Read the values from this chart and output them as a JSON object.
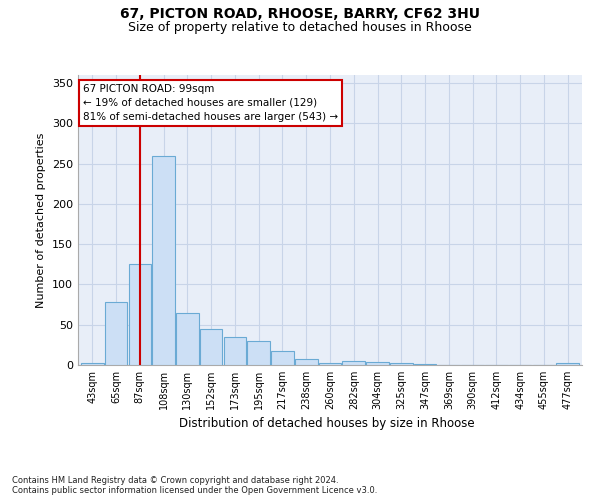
{
  "title1": "67, PICTON ROAD, RHOOSE, BARRY, CF62 3HU",
  "title2": "Size of property relative to detached houses in Rhoose",
  "xlabel": "Distribution of detached houses by size in Rhoose",
  "ylabel": "Number of detached properties",
  "footnote": "Contains HM Land Registry data © Crown copyright and database right 2024.\nContains public sector information licensed under the Open Government Licence v3.0.",
  "bin_labels": [
    "43sqm",
    "65sqm",
    "87sqm",
    "108sqm",
    "130sqm",
    "152sqm",
    "173sqm",
    "195sqm",
    "217sqm",
    "238sqm",
    "260sqm",
    "282sqm",
    "304sqm",
    "325sqm",
    "347sqm",
    "369sqm",
    "390sqm",
    "412sqm",
    "434sqm",
    "455sqm",
    "477sqm"
  ],
  "bar_values": [
    3,
    78,
    125,
    260,
    65,
    45,
    35,
    30,
    18,
    8,
    3,
    5,
    4,
    3,
    1,
    0,
    0,
    0,
    0,
    0,
    2
  ],
  "bar_color": "#ccdff5",
  "bar_edge_color": "#6aaad4",
  "grid_color": "#c8d4e8",
  "background_color": "#e8eef8",
  "red_line_color": "#cc0000",
  "annotation_box_color": "#ffffff",
  "annotation_border_color": "#cc0000",
  "property_label": "67 PICTON ROAD: 99sqm",
  "annotation_line1": "← 19% of detached houses are smaller (129)",
  "annotation_line2": "81% of semi-detached houses are larger (543) →",
  "ylim": [
    0,
    360
  ],
  "yticks": [
    0,
    50,
    100,
    150,
    200,
    250,
    300,
    350
  ],
  "red_line_bin": 2.5
}
